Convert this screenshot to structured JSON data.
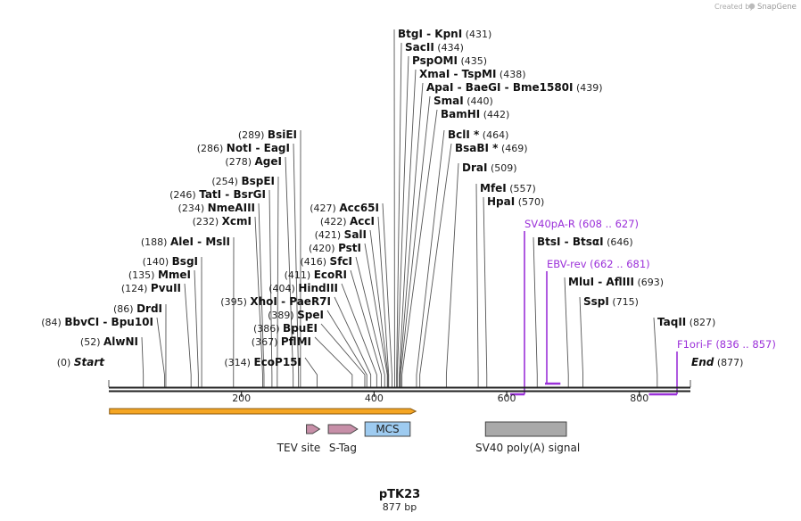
{
  "credit": {
    "prefix": "Created by",
    "brand": "SnapGene"
  },
  "plasmid": {
    "name": "pTK23",
    "length_label": "877 bp",
    "length": 877
  },
  "colors": {
    "primer": "#9b30d9",
    "orf": "#f5a623",
    "tev": "#c78fa8",
    "stag": "#c78fa8",
    "mcs": "#9ecbf0",
    "polya": "#a9a9a9"
  },
  "ticks": [
    {
      "value": 200,
      "label": "200"
    },
    {
      "value": 400,
      "label": "400"
    },
    {
      "value": 600,
      "label": "600"
    },
    {
      "value": 800,
      "label": "800"
    }
  ],
  "sites": [
    {
      "pos": "(0)",
      "parts": [
        "Start"
      ],
      "style": "italic",
      "at": 0
    },
    {
      "pos": "(52)",
      "parts": [
        "AlwNI"
      ],
      "at": 52
    },
    {
      "pos": "(84)",
      "parts": [
        "BbvCI",
        "Bpu10I"
      ],
      "at": 84
    },
    {
      "pos": "(86)",
      "parts": [
        "DrdI"
      ],
      "at": 86
    },
    {
      "pos": "(124)",
      "parts": [
        "PvuII"
      ],
      "at": 124
    },
    {
      "pos": "(135)",
      "parts": [
        "MmeI"
      ],
      "at": 135
    },
    {
      "pos": "(140)",
      "parts": [
        "BsgI"
      ],
      "at": 140
    },
    {
      "pos": "(188)",
      "parts": [
        "AleI",
        "MslI"
      ],
      "at": 188
    },
    {
      "pos": "(232)",
      "parts": [
        "XcmI"
      ],
      "at": 232
    },
    {
      "pos": "(234)",
      "parts": [
        "NmeAIII"
      ],
      "at": 234
    },
    {
      "pos": "(246)",
      "parts": [
        "TatI",
        "BsrGI"
      ],
      "at": 246
    },
    {
      "pos": "(254)",
      "parts": [
        "BspEI"
      ],
      "at": 254
    },
    {
      "pos": "(278)",
      "parts": [
        "AgeI"
      ],
      "at": 278
    },
    {
      "pos": "(286)",
      "parts": [
        "NotI",
        "EagI"
      ],
      "at": 286
    },
    {
      "pos": "(289)",
      "parts": [
        "BsiEI"
      ],
      "at": 289
    },
    {
      "pos": "(314)",
      "parts": [
        "EcoP15I"
      ],
      "at": 314
    },
    {
      "pos": "(367)",
      "parts": [
        "PflMI"
      ],
      "at": 367
    },
    {
      "pos": "(386)",
      "parts": [
        "BpuEI"
      ],
      "at": 386
    },
    {
      "pos": "(389)",
      "parts": [
        "SpeI"
      ],
      "at": 389
    },
    {
      "pos": "(395)",
      "parts": [
        "XhoI",
        "PaeR7I"
      ],
      "at": 395
    },
    {
      "pos": "(404)",
      "parts": [
        "HindIII"
      ],
      "at": 404
    },
    {
      "pos": "(411)",
      "parts": [
        "EcoRI"
      ],
      "at": 411
    },
    {
      "pos": "(416)",
      "parts": [
        "SfcI"
      ],
      "at": 416
    },
    {
      "pos": "(420)",
      "parts": [
        "PstI"
      ],
      "at": 420
    },
    {
      "pos": "(421)",
      "parts": [
        "SalI"
      ],
      "at": 421
    },
    {
      "pos": "(422)",
      "parts": [
        "AccI"
      ],
      "at": 422
    },
    {
      "pos": "(427)",
      "parts": [
        "Acc65I"
      ],
      "at": 427
    },
    {
      "pos": "(431)",
      "parts": [
        "BtgI",
        "KpnI"
      ],
      "at": 431
    },
    {
      "pos": "(434)",
      "parts": [
        "SacII"
      ],
      "at": 434
    },
    {
      "pos": "(435)",
      "parts": [
        "PspOMI"
      ],
      "at": 435
    },
    {
      "pos": "(438)",
      "parts": [
        "XmaI",
        "TspMI"
      ],
      "at": 438
    },
    {
      "pos": "(439)",
      "parts": [
        "ApaI",
        "BaeGI",
        "Bme1580I"
      ],
      "at": 439
    },
    {
      "pos": "(440)",
      "parts": [
        "SmaI"
      ],
      "at": 440
    },
    {
      "pos": "(442)",
      "parts": [
        "BamHI"
      ],
      "at": 442
    },
    {
      "pos": "(464)",
      "parts": [
        "BclI *"
      ],
      "at": 464
    },
    {
      "pos": "(469)",
      "parts": [
        "BsaBI *"
      ],
      "at": 469
    },
    {
      "pos": "(509)",
      "parts": [
        "DraI"
      ],
      "at": 509
    },
    {
      "pos": "(557)",
      "parts": [
        "MfeI"
      ],
      "at": 557
    },
    {
      "pos": "(570)",
      "parts": [
        "HpaI"
      ],
      "at": 570
    },
    {
      "pos": "(646)",
      "parts": [
        "BtsI",
        "BtsαI"
      ],
      "at": 646
    },
    {
      "pos": "(693)",
      "parts": [
        "MluI",
        "AflIII"
      ],
      "at": 693
    },
    {
      "pos": "(715)",
      "parts": [
        "SspI"
      ],
      "at": 715
    },
    {
      "pos": "(827)",
      "parts": [
        "TaqII"
      ],
      "at": 827
    },
    {
      "pos": "(877)",
      "parts": [
        "End"
      ],
      "style": "italic",
      "at": 877
    }
  ],
  "primers": [
    {
      "name": "SV40pA-R",
      "range": "(608 .. 627)",
      "start": 608,
      "end": 627,
      "dir": "reverse"
    },
    {
      "name": "EBV-rev",
      "range": "(662 .. 681)",
      "start": 662,
      "end": 681,
      "dir": "reverse"
    },
    {
      "name": "F1ori-F",
      "range": "(836 .. 857)",
      "start": 836,
      "end": 857,
      "dir": "forward"
    }
  ],
  "features": [
    {
      "name": "ORF",
      "start": 1,
      "end": 463,
      "kind": "orf"
    },
    {
      "name": "TEV site",
      "start": 298,
      "end": 318,
      "kind": "arrow"
    },
    {
      "name": "S-Tag",
      "start": 331,
      "end": 375,
      "kind": "arrow"
    },
    {
      "name": "MCS",
      "start": 393,
      "end": 445,
      "kind": "box"
    },
    {
      "name": "SV40 poly(A) signal",
      "start": 568,
      "end": 690,
      "kind": "grey"
    }
  ]
}
